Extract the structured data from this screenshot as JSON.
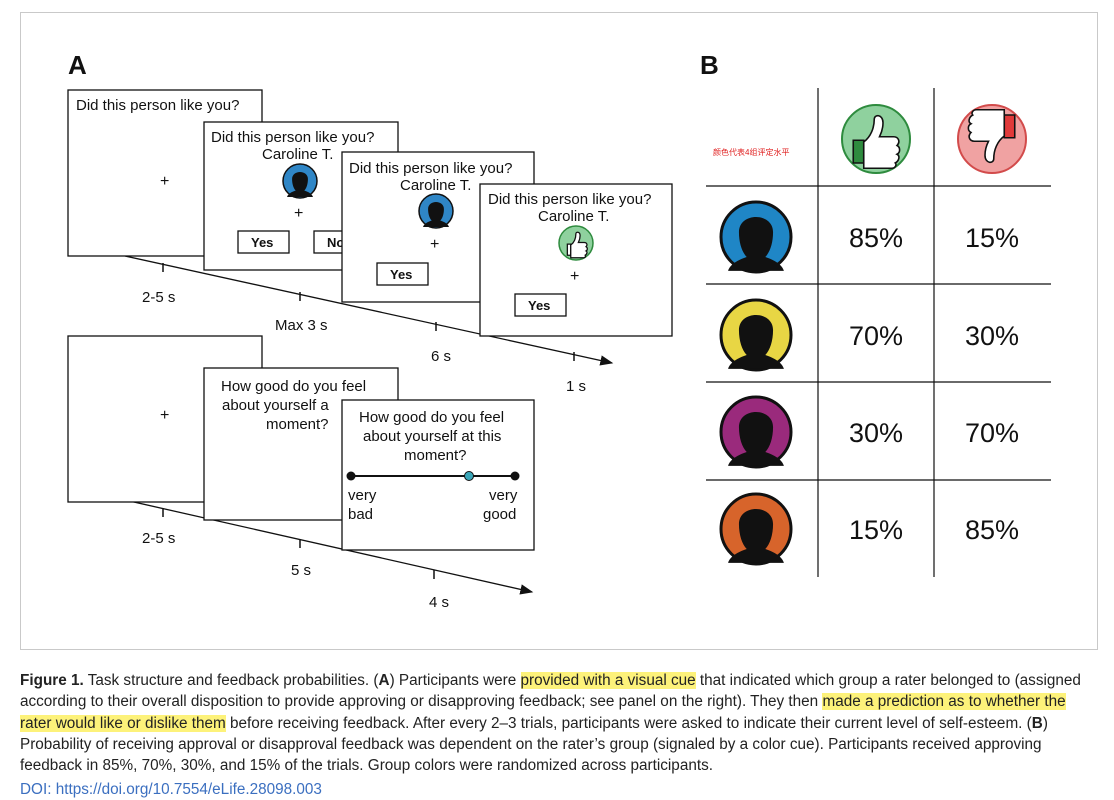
{
  "panel_a": {
    "label": "A",
    "screen_question": "Did this person like you?",
    "rater_name": "Caroline T.",
    "fixation": "+",
    "btn_yes": "Yes",
    "btn_no_partial": "No",
    "mood_q1": "How good do you feel",
    "mood_q2_front": "about yourself at this",
    "mood_q3": "moment?",
    "mood_q2_back": "about yourself a",
    "scale_left_1": "very",
    "scale_left_2": "bad",
    "scale_right_1": "very",
    "scale_right_2": "good",
    "timeline1": [
      "2-5 s",
      "Max 3 s",
      "6 s",
      "1 s"
    ],
    "timeline2": [
      "2-5 s",
      "5 s",
      "4 s"
    ],
    "colors": {
      "blue": "#2f86c6",
      "green_icon": "#8fd19e",
      "dark_green": "#2e8b3e",
      "teal_dot": "#3aa6b9"
    }
  },
  "panel_b": {
    "label": "B",
    "header_note": "颜色代表4组评定水平",
    "header_note_color": "#e02020",
    "like_icon": "thumbs-up-icon",
    "dislike_icon": "thumbs-down-icon",
    "rows": [
      {
        "color": "#1f86c6",
        "like": "85%",
        "dislike": "15%"
      },
      {
        "color": "#e8d644",
        "like": "70%",
        "dislike": "30%"
      },
      {
        "color": "#9a2a7c",
        "like": "30%",
        "dislike": "70%"
      },
      {
        "color": "#d7642b",
        "like": "15%",
        "dislike": "85%"
      }
    ]
  },
  "caption": {
    "fig_label": "Figure 1.",
    "t1": " Task structure and feedback probabilities. (",
    "A": "A",
    "t2": ") Participants were ",
    "h1": "provided with a visual cue",
    "t3": " that indicated which group a rater belonged to (assigned according to their overall disposition to provide approving or disapproving feedback; see panel on the right). They then ",
    "h2": "made a prediction as to whether the rater would like or dislike them",
    "t4": " before receiving feedback. After every 2–3 trials, participants were asked to indicate their current level of self-esteem. (",
    "B": "B",
    "t5": ") Probability of receiving approval or disapproval feedback was dependent on the rater’s group (signaled by a color cue). Participants received approving feedback in 85%, 70%, 30%, and 15% of the trials. Group colors were randomized across participants.",
    "doi": "DOI: https://doi.org/10.7554/eLife.28098.003"
  }
}
